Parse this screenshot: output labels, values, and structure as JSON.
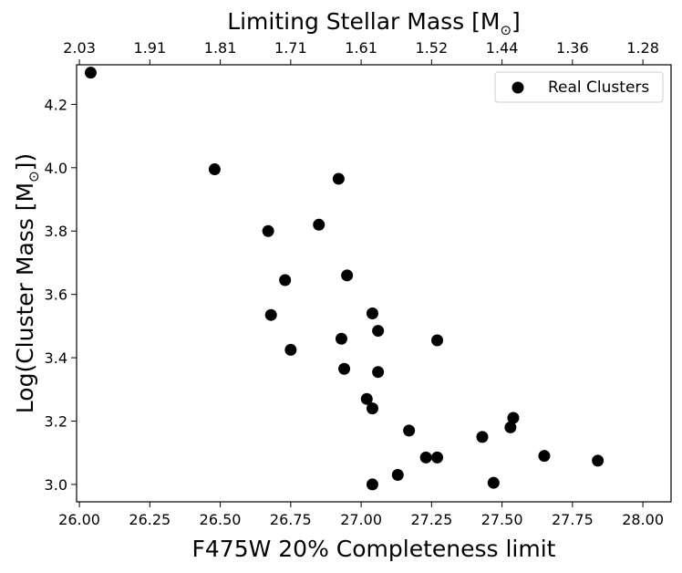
{
  "chart_data": {
    "type": "scatter",
    "title": "",
    "xlabel": "F475W 20% Completeness limit",
    "ylabel_text": "Log(Cluster Mass [M",
    "ylabel_sub": "⊙",
    "ylabel_end": "])",
    "top_axis_label_text": "Limiting Stellar Mass [M",
    "top_axis_label_sub": "⊙",
    "top_axis_label_end": "]",
    "xlim": [
      25.99,
      28.1
    ],
    "ylim": [
      2.945,
      4.325
    ],
    "x_ticks": [
      26.0,
      26.25,
      26.5,
      26.75,
      27.0,
      27.25,
      27.5,
      27.75,
      28.0
    ],
    "x_tick_labels": [
      "26.00",
      "26.25",
      "26.50",
      "26.75",
      "27.00",
      "27.25",
      "27.50",
      "27.75",
      "28.00"
    ],
    "y_ticks": [
      3.0,
      3.2,
      3.4,
      3.6,
      3.8,
      4.0,
      4.2
    ],
    "y_tick_labels": [
      "3.0",
      "3.2",
      "3.4",
      "3.6",
      "3.8",
      "4.0",
      "4.2"
    ],
    "top_x_ticks": [
      26.0,
      26.25,
      26.5,
      26.75,
      27.0,
      27.25,
      27.5,
      27.75,
      28.0
    ],
    "top_tick_labels": [
      "2.03",
      "1.91",
      "1.81",
      "1.71",
      "1.61",
      "1.52",
      "1.44",
      "1.36",
      "1.28"
    ],
    "grid": false,
    "legend_position": "top-right",
    "series": [
      {
        "name": "Real Clusters",
        "color": "#000000",
        "points": [
          {
            "x": 26.04,
            "y": 4.3
          },
          {
            "x": 26.48,
            "y": 3.995
          },
          {
            "x": 26.67,
            "y": 3.8
          },
          {
            "x": 26.68,
            "y": 3.535
          },
          {
            "x": 26.73,
            "y": 3.645
          },
          {
            "x": 26.75,
            "y": 3.425
          },
          {
            "x": 26.85,
            "y": 3.82
          },
          {
            "x": 26.92,
            "y": 3.965
          },
          {
            "x": 26.93,
            "y": 3.46
          },
          {
            "x": 26.94,
            "y": 3.365
          },
          {
            "x": 26.95,
            "y": 3.66
          },
          {
            "x": 27.02,
            "y": 3.27
          },
          {
            "x": 27.04,
            "y": 3.54
          },
          {
            "x": 27.04,
            "y": 3.24
          },
          {
            "x": 27.04,
            "y": 3.0
          },
          {
            "x": 27.06,
            "y": 3.485
          },
          {
            "x": 27.06,
            "y": 3.355
          },
          {
            "x": 27.13,
            "y": 3.03
          },
          {
            "x": 27.17,
            "y": 3.17
          },
          {
            "x": 27.23,
            "y": 3.085
          },
          {
            "x": 27.27,
            "y": 3.455
          },
          {
            "x": 27.27,
            "y": 3.085
          },
          {
            "x": 27.43,
            "y": 3.15
          },
          {
            "x": 27.47,
            "y": 3.005
          },
          {
            "x": 27.53,
            "y": 3.18
          },
          {
            "x": 27.54,
            "y": 3.21
          },
          {
            "x": 27.65,
            "y": 3.09
          },
          {
            "x": 27.84,
            "y": 3.075
          }
        ]
      }
    ]
  }
}
